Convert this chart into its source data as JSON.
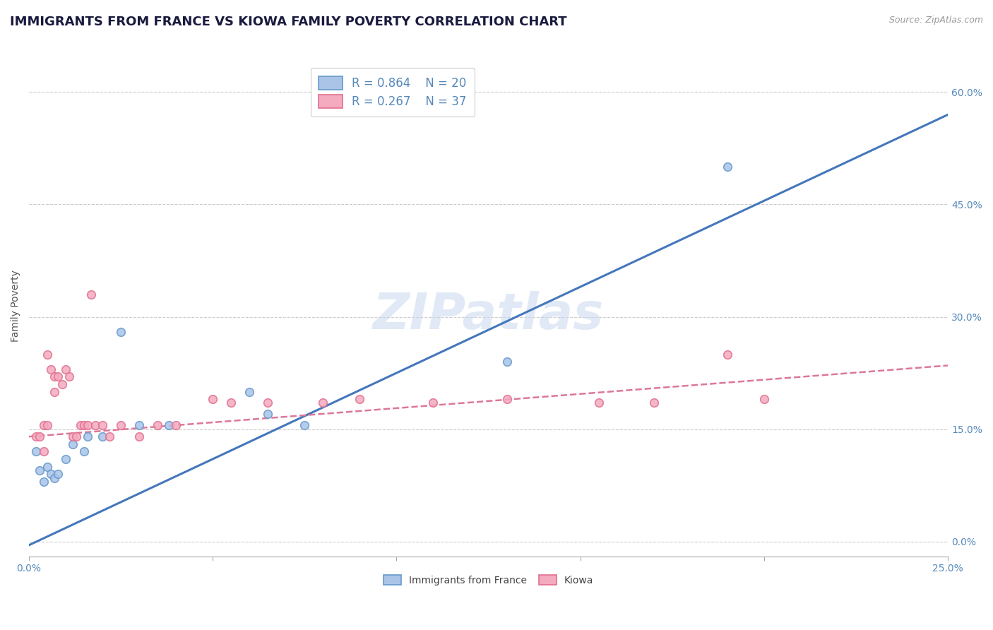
{
  "title": "IMMIGRANTS FROM FRANCE VS KIOWA FAMILY POVERTY CORRELATION CHART",
  "source": "Source: ZipAtlas.com",
  "ylabel": "Family Poverty",
  "watermark": "ZIPatlas",
  "legend_label_blue": "Immigrants from France",
  "legend_label_pink": "Kiowa",
  "xlim": [
    0.0,
    0.25
  ],
  "ylim": [
    -0.02,
    0.65
  ],
  "yticks": [
    0.0,
    0.15,
    0.3,
    0.45,
    0.6
  ],
  "background_color": "#ffffff",
  "grid_color": "#cccccc",
  "title_color": "#1a1a3e",
  "axis_color": "#5588bb",
  "blue_scatter": [
    [
      0.002,
      0.12
    ],
    [
      0.003,
      0.095
    ],
    [
      0.004,
      0.08
    ],
    [
      0.005,
      0.1
    ],
    [
      0.006,
      0.09
    ],
    [
      0.007,
      0.085
    ],
    [
      0.008,
      0.09
    ],
    [
      0.01,
      0.11
    ],
    [
      0.012,
      0.13
    ],
    [
      0.015,
      0.12
    ],
    [
      0.016,
      0.14
    ],
    [
      0.02,
      0.14
    ],
    [
      0.025,
      0.28
    ],
    [
      0.03,
      0.155
    ],
    [
      0.038,
      0.155
    ],
    [
      0.06,
      0.2
    ],
    [
      0.065,
      0.17
    ],
    [
      0.075,
      0.155
    ],
    [
      0.13,
      0.24
    ],
    [
      0.19,
      0.5
    ]
  ],
  "pink_scatter": [
    [
      0.002,
      0.14
    ],
    [
      0.003,
      0.14
    ],
    [
      0.004,
      0.12
    ],
    [
      0.004,
      0.155
    ],
    [
      0.005,
      0.155
    ],
    [
      0.005,
      0.25
    ],
    [
      0.006,
      0.23
    ],
    [
      0.007,
      0.22
    ],
    [
      0.007,
      0.2
    ],
    [
      0.008,
      0.22
    ],
    [
      0.009,
      0.21
    ],
    [
      0.01,
      0.23
    ],
    [
      0.011,
      0.22
    ],
    [
      0.012,
      0.14
    ],
    [
      0.013,
      0.14
    ],
    [
      0.014,
      0.155
    ],
    [
      0.015,
      0.155
    ],
    [
      0.016,
      0.155
    ],
    [
      0.017,
      0.33
    ],
    [
      0.018,
      0.155
    ],
    [
      0.02,
      0.155
    ],
    [
      0.022,
      0.14
    ],
    [
      0.025,
      0.155
    ],
    [
      0.03,
      0.14
    ],
    [
      0.035,
      0.155
    ],
    [
      0.04,
      0.155
    ],
    [
      0.05,
      0.19
    ],
    [
      0.055,
      0.185
    ],
    [
      0.065,
      0.185
    ],
    [
      0.08,
      0.185
    ],
    [
      0.09,
      0.19
    ],
    [
      0.11,
      0.185
    ],
    [
      0.13,
      0.19
    ],
    [
      0.155,
      0.185
    ],
    [
      0.17,
      0.185
    ],
    [
      0.19,
      0.25
    ],
    [
      0.2,
      0.19
    ]
  ],
  "blue_line_x": [
    0.0,
    0.25
  ],
  "blue_line_y": [
    -0.005,
    0.57
  ],
  "pink_line_x": [
    0.0,
    0.25
  ],
  "pink_line_y": [
    0.14,
    0.235
  ],
  "blue_color": "#aac4e8",
  "pink_color": "#f4aabf",
  "blue_edge_color": "#6699cc",
  "pink_edge_color": "#e07090",
  "blue_line_color": "#4477bb",
  "pink_line_color": "#dd7799",
  "title_fontsize": 13,
  "axis_label_fontsize": 10,
  "tick_fontsize": 10,
  "legend_r_blue": "R = 0.864",
  "legend_n_blue": "N = 20",
  "legend_r_pink": "R = 0.267",
  "legend_n_pink": "N = 37"
}
